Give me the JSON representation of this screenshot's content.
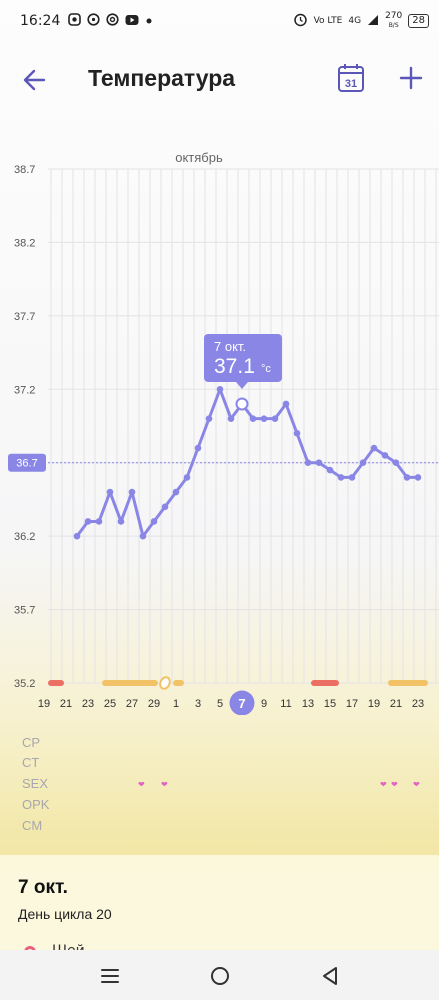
{
  "status_bar": {
    "time": "16:24",
    "left_icons": [
      "app-notification-icon",
      "whatsapp-icon",
      "at-icon",
      "youtube-icon",
      "dot-icon"
    ],
    "network_text": "Vo LTE",
    "signal_text": "4G",
    "speed_value": "270",
    "speed_unit": "B/S",
    "battery": "28"
  },
  "app_bar": {
    "title": "Температура",
    "calendar_day": "31"
  },
  "chart": {
    "month_label": "октябрь",
    "tooltip_date": "7 окт.",
    "tooltip_value": "37.1",
    "tooltip_unit": "°c",
    "current_marker": "36.7",
    "selected_day": "7"
  },
  "chart_data": {
    "type": "line",
    "title": "",
    "xlabel": "",
    "ylabel": "",
    "ylim": [
      35.2,
      38.7
    ],
    "y_ticks": [
      "38.7",
      "38.2",
      "37.7",
      "37.2",
      "36.7",
      "36.2",
      "35.7",
      "35.2"
    ],
    "x_tick_labels": [
      "19",
      "21",
      "23",
      "25",
      "27",
      "29",
      "1",
      "3",
      "5",
      "7",
      "9",
      "11",
      "13",
      "15",
      "17",
      "19",
      "21",
      "23"
    ],
    "x": [
      "22",
      "23",
      "24",
      "25",
      "26",
      "27",
      "28",
      "29",
      "30",
      "1",
      "2",
      "3",
      "4",
      "5",
      "6",
      "7",
      "8",
      "9",
      "10",
      "11",
      "12",
      "13",
      "14",
      "15",
      "16",
      "17",
      "18",
      "19",
      "20",
      "21",
      "22",
      "23"
    ],
    "series": [
      {
        "values": [
          36.2,
          36.3,
          36.3,
          36.5,
          36.3,
          36.5,
          36.2,
          36.3,
          36.4,
          36.5,
          36.6,
          36.8,
          37.0,
          37.2,
          37.0,
          37.1,
          37.0,
          37.0,
          37.0,
          37.1,
          36.9,
          36.7,
          36.7,
          36.65,
          36.6,
          36.6,
          36.7,
          36.8,
          36.75,
          36.7,
          36.6,
          36.6
        ],
        "color": "#8a86e6"
      }
    ],
    "marked_point": "7",
    "reference_line": 36.7
  },
  "rows": {
    "labels": [
      "CP",
      "CT",
      "SEX",
      "OPK",
      "CM"
    ]
  },
  "info": {
    "date": "7 окт.",
    "cycle_day": "День цикла 20",
    "peek_text": "Шей"
  },
  "colors": {
    "accent": "#8a86e6",
    "period": "#ec6f63",
    "fertile": "#f1c366",
    "heart": "#e264c5",
    "title_icon": "#5a57b8"
  }
}
